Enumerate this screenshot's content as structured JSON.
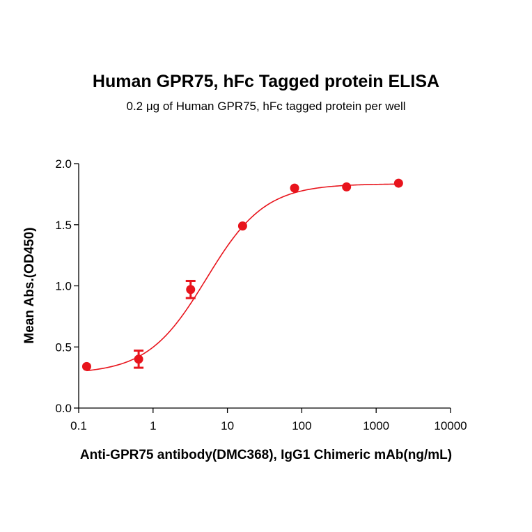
{
  "chart_data": {
    "type": "scatter",
    "title": "Human GPR75, hFc Tagged protein ELISA",
    "subtitle": "0.2 μg of Human GPR75, hFc tagged protein per well",
    "xlabel": "Anti-GPR75 antibody(DMC368), IgG1 Chimeric mAb(ng/mL)",
    "ylabel": "Mean Abs.(OD450)",
    "xscale": "log",
    "xlim": [
      0.1,
      10000
    ],
    "ylim": [
      0.0,
      2.0
    ],
    "x_ticks": [
      "0.1",
      "1",
      "10",
      "100",
      "1000",
      "10000"
    ],
    "y_ticks": [
      "0.0",
      "0.5",
      "1.0",
      "1.5",
      "2.0"
    ],
    "color": "#e8141c",
    "grid": false,
    "legend": "none",
    "points": [
      {
        "x": 0.128,
        "y": 0.34,
        "err": 0.0
      },
      {
        "x": 0.64,
        "y": 0.4,
        "err": 0.07
      },
      {
        "x": 3.2,
        "y": 0.97,
        "err": 0.07
      },
      {
        "x": 16,
        "y": 1.49,
        "err": 0.0
      },
      {
        "x": 80,
        "y": 1.8,
        "err": 0.0
      },
      {
        "x": 400,
        "y": 1.81,
        "err": 0.0
      },
      {
        "x": 2000,
        "y": 1.84,
        "err": 0.0
      }
    ],
    "fit": {
      "model": "4PL",
      "bottom": 0.28,
      "top": 1.835,
      "ec50": 5.2,
      "hill": 1.1
    }
  }
}
